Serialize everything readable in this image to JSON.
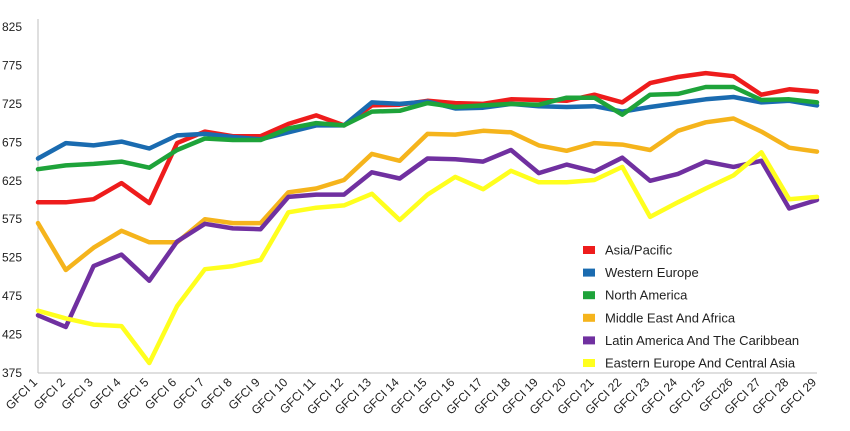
{
  "chart_data": {
    "type": "line",
    "title": "",
    "xlabel": "",
    "ylabel": "",
    "ylim": [
      375,
      825
    ],
    "yticks": [
      375,
      425,
      475,
      525,
      575,
      625,
      675,
      725,
      775,
      825
    ],
    "grid": false,
    "legend_position": "bottom-right",
    "categories": [
      "GFCI 1",
      "GFCI 2",
      "GFCI 3",
      "GFCI 4",
      "GFCI 5",
      "GFCI 6",
      "GFCI 7",
      "GFCI 8",
      "GFCI 9",
      "GFCI 10",
      "GFCI 11",
      "GFCI 12",
      "GFCI 13",
      "GFCI 14",
      "GFCI 15",
      "GFCI 16",
      "GFCI 17",
      "GFCI 18",
      "GFCI 19",
      "GFCI 20",
      "GFCI 21",
      "GFCI 22",
      "GFCI 23",
      "GFCI 24",
      "GFCI 25",
      "GFCI26",
      "GFCI 27",
      "GFCI 28",
      "GFCI 29"
    ],
    "series": [
      {
        "name": "Asia/Pacific",
        "color": "#ee1c1c",
        "values": [
          597,
          597,
          601,
          622,
          596,
          674,
          689,
          683,
          683,
          699,
          710,
          697,
          723,
          724,
          729,
          726,
          725,
          731,
          730,
          729,
          737,
          727,
          752,
          760,
          765,
          761,
          737,
          744,
          741
        ]
      },
      {
        "name": "Western Europe",
        "color": "#1a6bb0",
        "values": [
          654,
          674,
          671,
          676,
          667,
          684,
          686,
          682,
          679,
          688,
          697,
          697,
          727,
          725,
          728,
          719,
          720,
          725,
          722,
          721,
          722,
          715,
          721,
          726,
          731,
          734,
          727,
          729,
          723
        ]
      },
      {
        "name": "North America",
        "color": "#1ea33a",
        "values": [
          640,
          645,
          647,
          650,
          642,
          665,
          680,
          678,
          678,
          693,
          700,
          697,
          715,
          716,
          726,
          721,
          723,
          725,
          724,
          733,
          733,
          711,
          737,
          738,
          747,
          747,
          730,
          731,
          727
        ]
      },
      {
        "name": "Middle East And Africa",
        "color": "#f5b41c",
        "values": [
          570,
          509,
          538,
          560,
          545,
          545,
          575,
          570,
          570,
          610,
          615,
          626,
          660,
          651,
          686,
          685,
          690,
          688,
          671,
          664,
          674,
          672,
          665,
          690,
          701,
          706,
          689,
          668,
          663
        ]
      },
      {
        "name": "Latin America And The Caribbean",
        "color": "#7030a0",
        "values": [
          450,
          435,
          514,
          529,
          495,
          546,
          569,
          563,
          562,
          604,
          607,
          607,
          636,
          628,
          654,
          653,
          650,
          665,
          635,
          646,
          637,
          655,
          625,
          634,
          650,
          643,
          651,
          589,
          600
        ]
      },
      {
        "name": "Eastern Europe And Central Asia",
        "color": "#ffff1e",
        "values": [
          456,
          446,
          438,
          436,
          388,
          462,
          510,
          514,
          522,
          584,
          590,
          593,
          608,
          574,
          607,
          630,
          614,
          638,
          623,
          623,
          626,
          643,
          578,
          597,
          615,
          632,
          662,
          601,
          604
        ]
      }
    ]
  }
}
